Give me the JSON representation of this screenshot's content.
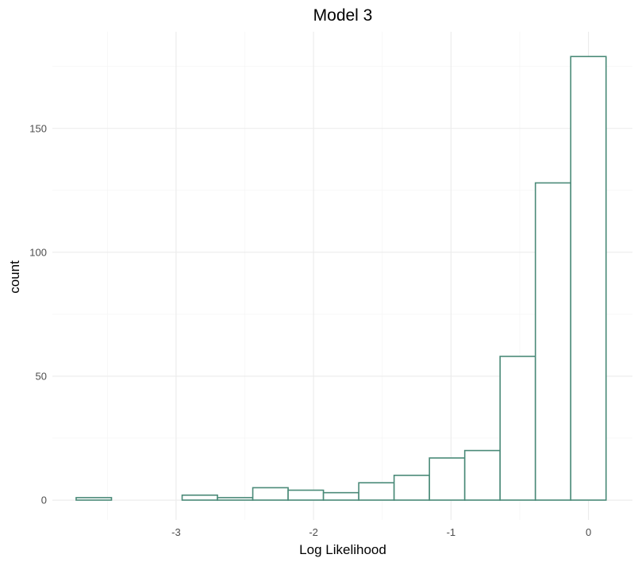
{
  "chart_data": {
    "type": "bar",
    "title": "Model 3",
    "xlabel": "Log Likelihood",
    "ylabel": "count",
    "xlim": [
      -3.9,
      0.32
    ],
    "ylim": [
      -8,
      189
    ],
    "x_ticks": [
      -3,
      -2,
      -1,
      0
    ],
    "y_ticks": [
      0,
      50,
      100,
      150
    ],
    "x_tick_labels": [
      "-3",
      "-2",
      "-1",
      "0"
    ],
    "y_tick_labels": [
      "0",
      "50",
      "100",
      "150"
    ],
    "bin_width": 0.257,
    "bin_edges": [
      -3.727,
      -3.47,
      -3.213,
      -2.956,
      -2.699,
      -2.442,
      -2.185,
      -1.928,
      -1.671,
      -1.414,
      -1.157,
      -0.9,
      -0.643,
      -0.386,
      -0.129,
      0.128
    ],
    "values": [
      1,
      0,
      0,
      2,
      1,
      5,
      4,
      3,
      7,
      10,
      17,
      20,
      58,
      128,
      179
    ],
    "grid": true,
    "bar_outline_color": "#4a8a78",
    "bar_fill_color": "#ffffff"
  }
}
